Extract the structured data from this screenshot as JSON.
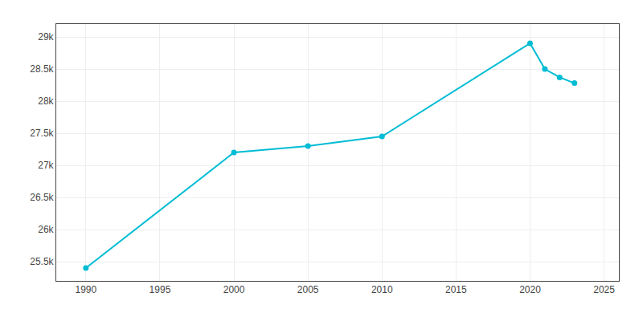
{
  "chart_data": {
    "type": "line",
    "x": [
      1990,
      2000,
      2005,
      2010,
      2020,
      2021,
      2022,
      2023
    ],
    "values": [
      25400,
      27200,
      27300,
      27450,
      28900,
      28500,
      28370,
      28280
    ],
    "color": "#00bcd4",
    "marker": "circle",
    "xlim": [
      1988,
      2026
    ],
    "ylim": [
      25200,
      29200
    ],
    "xticks": [
      1990,
      1995,
      2000,
      2005,
      2010,
      2015,
      2020,
      2025
    ],
    "yticks": [
      {
        "value": 25500,
        "label": "25.5k"
      },
      {
        "value": 26000,
        "label": "26k"
      },
      {
        "value": 26500,
        "label": "26.5k"
      },
      {
        "value": 27000,
        "label": "27k"
      },
      {
        "value": 27500,
        "label": "27.5k"
      },
      {
        "value": 28000,
        "label": "28k"
      },
      {
        "value": 28500,
        "label": "28.5k"
      },
      {
        "value": 29000,
        "label": "29k"
      }
    ],
    "grid": true
  }
}
